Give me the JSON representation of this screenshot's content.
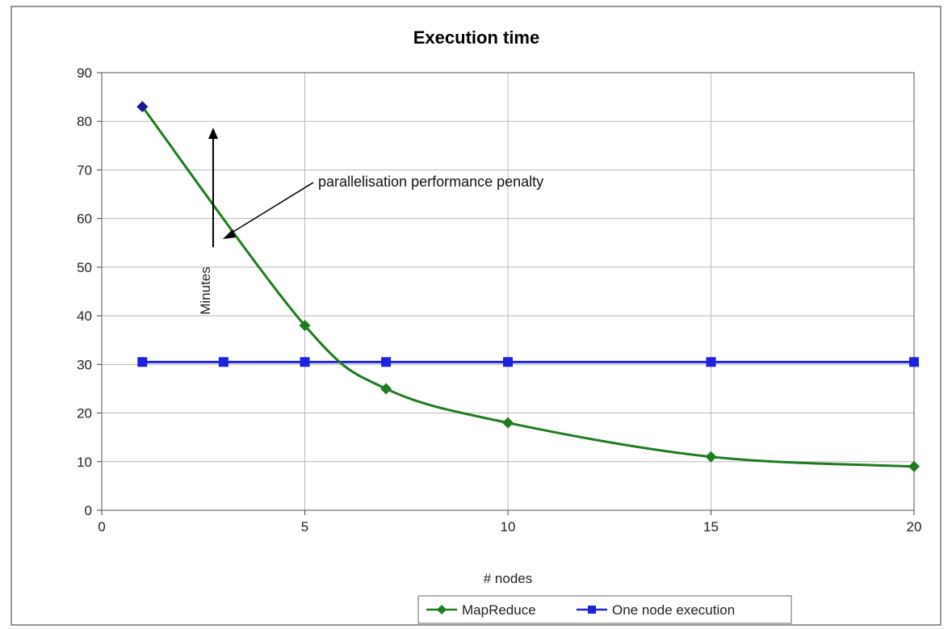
{
  "chart_data": {
    "type": "line",
    "title": "Execution time",
    "xlabel": "# nodes",
    "ylabel": "Minutes",
    "xlim": [
      0,
      20
    ],
    "ylim": [
      0,
      90
    ],
    "x_ticks": [
      0,
      5,
      10,
      15,
      20
    ],
    "y_ticks": [
      0,
      10,
      20,
      30,
      40,
      50,
      60,
      70,
      80,
      90
    ],
    "grid": true,
    "legend": "bottom",
    "series": [
      {
        "name": "MapReduce",
        "color": "#1e7b1e",
        "points": [
          [
            1,
            83
          ],
          [
            5,
            38
          ],
          [
            7,
            25
          ],
          [
            10,
            18
          ],
          [
            15,
            11
          ],
          [
            20,
            9
          ]
        ]
      },
      {
        "name": "One node execution",
        "color": "#1e22e0",
        "points": [
          [
            1,
            30.5
          ],
          [
            3,
            30.5
          ],
          [
            5,
            30.5
          ],
          [
            7,
            30.5
          ],
          [
            10,
            30.5
          ],
          [
            15,
            30.5
          ],
          [
            20,
            30.5
          ]
        ]
      }
    ],
    "annotations": [
      {
        "text": "parallelisation performance penalty"
      }
    ]
  }
}
